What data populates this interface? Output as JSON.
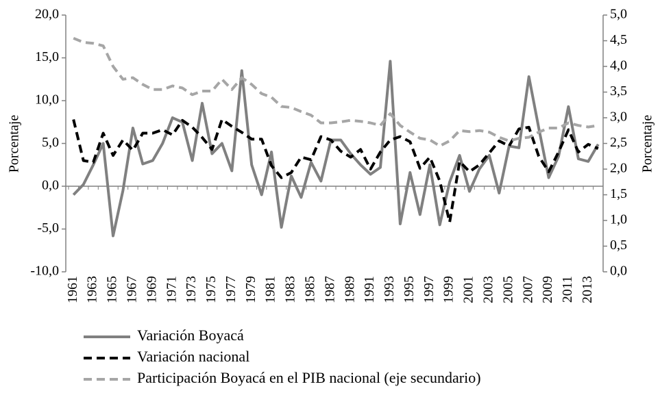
{
  "chart_data": {
    "type": "line",
    "categories": [
      "1961",
      null,
      "1963",
      null,
      "1965",
      null,
      "1967",
      null,
      "1969",
      null,
      "1971",
      null,
      "1973",
      null,
      "1975",
      null,
      "1977",
      null,
      "1979",
      null,
      "1981",
      null,
      "1983",
      null,
      "1985",
      null,
      "1987",
      null,
      "1989",
      null,
      "1991",
      null,
      "1993",
      null,
      "1995",
      null,
      "1997",
      null,
      "1999",
      null,
      "2001",
      null,
      "2003",
      null,
      "2005",
      null,
      "2007",
      null,
      "2009",
      null,
      "2011",
      null,
      "2013",
      null
    ],
    "ylabel": "Porcentaje",
    "y2label": "Porcentaje",
    "ylim": [
      -10,
      20
    ],
    "yticks": [
      {
        "value": -10,
        "label": "-10,0"
      },
      {
        "value": -5,
        "label": "-5,0"
      },
      {
        "value": 0,
        "label": "0,0"
      },
      {
        "value": 5,
        "label": "5,0"
      },
      {
        "value": 10,
        "label": "10,0"
      },
      {
        "value": 15,
        "label": "15,0"
      },
      {
        "value": 20,
        "label": "20,0"
      }
    ],
    "y2lim": [
      0,
      5
    ],
    "y2ticks": [
      {
        "value": 0,
        "label": "0,0"
      },
      {
        "value": 0.5,
        "label": "0,5"
      },
      {
        "value": 1,
        "label": "1,0"
      },
      {
        "value": 1.5,
        "label": "1,5"
      },
      {
        "value": 2,
        "label": "2,0"
      },
      {
        "value": 2.5,
        "label": "2,5"
      },
      {
        "value": 3,
        "label": "3,0"
      },
      {
        "value": 3.5,
        "label": "3,5"
      },
      {
        "value": 4,
        "label": "4,0"
      },
      {
        "value": 4.5,
        "label": "4,5"
      },
      {
        "value": 5,
        "label": "5,0"
      }
    ],
    "series": [
      {
        "name": "Variación Boyacá",
        "color": "#808080",
        "dashed": false,
        "values": [
          -1.0,
          0.2,
          2.5,
          5.0,
          -5.8,
          -0.5,
          6.8,
          2.6,
          3.0,
          5.0,
          8.0,
          7.5,
          3.0,
          9.7,
          3.8,
          5.0,
          1.8,
          13.5,
          2.5,
          -1.0,
          4.0,
          -4.8,
          1.2,
          -1.3,
          2.8,
          0.6,
          5.4,
          5.4,
          3.8,
          2.5,
          1.4,
          2.2,
          14.6,
          -4.4,
          1.6,
          -3.3,
          2.5,
          -4.5,
          0.5,
          3.6,
          -0.6,
          2.0,
          3.6,
          -0.8,
          4.7,
          4.5,
          12.8,
          6.8,
          1.0,
          3.5,
          9.3,
          3.2,
          2.9,
          4.9
        ]
      },
      {
        "name": "Variación nacional",
        "color": "#000000",
        "dashed": true,
        "values": [
          7.8,
          3.0,
          2.8,
          6.2,
          3.6,
          5.4,
          4.2,
          6.2,
          6.2,
          6.6,
          6.0,
          7.7,
          6.9,
          5.7,
          4.3,
          7.8,
          7.0,
          6.3,
          5.5,
          5.5,
          2.4,
          1.0,
          1.6,
          3.4,
          3.1,
          5.8,
          5.4,
          4.1,
          3.4,
          4.3,
          2.0,
          4.0,
          5.4,
          5.8,
          5.2,
          2.1,
          3.4,
          0.6,
          -4.2,
          2.9,
          1.7,
          2.5,
          3.9,
          5.3,
          4.7,
          6.7,
          6.9,
          3.5,
          1.7,
          4.0,
          6.6,
          4.0,
          4.9,
          4.4
        ]
      },
      {
        "name": "Participación Boyacá en el PIB nacional (eje secundario)",
        "color": "#a6a6a6",
        "dashed": true,
        "axis": "y2",
        "values": [
          4.55,
          4.47,
          4.45,
          4.4,
          4.0,
          3.75,
          3.78,
          3.65,
          3.55,
          3.55,
          3.62,
          3.58,
          3.45,
          3.52,
          3.52,
          3.75,
          3.55,
          3.78,
          3.65,
          3.47,
          3.4,
          3.22,
          3.2,
          3.12,
          3.05,
          2.9,
          2.9,
          2.92,
          2.95,
          2.93,
          2.9,
          2.85,
          3.08,
          2.85,
          2.72,
          2.6,
          2.57,
          2.45,
          2.55,
          2.75,
          2.73,
          2.75,
          2.72,
          2.62,
          2.55,
          2.6,
          2.62,
          2.72,
          2.8,
          2.8,
          2.9,
          2.85,
          2.82,
          2.85
        ]
      }
    ]
  }
}
